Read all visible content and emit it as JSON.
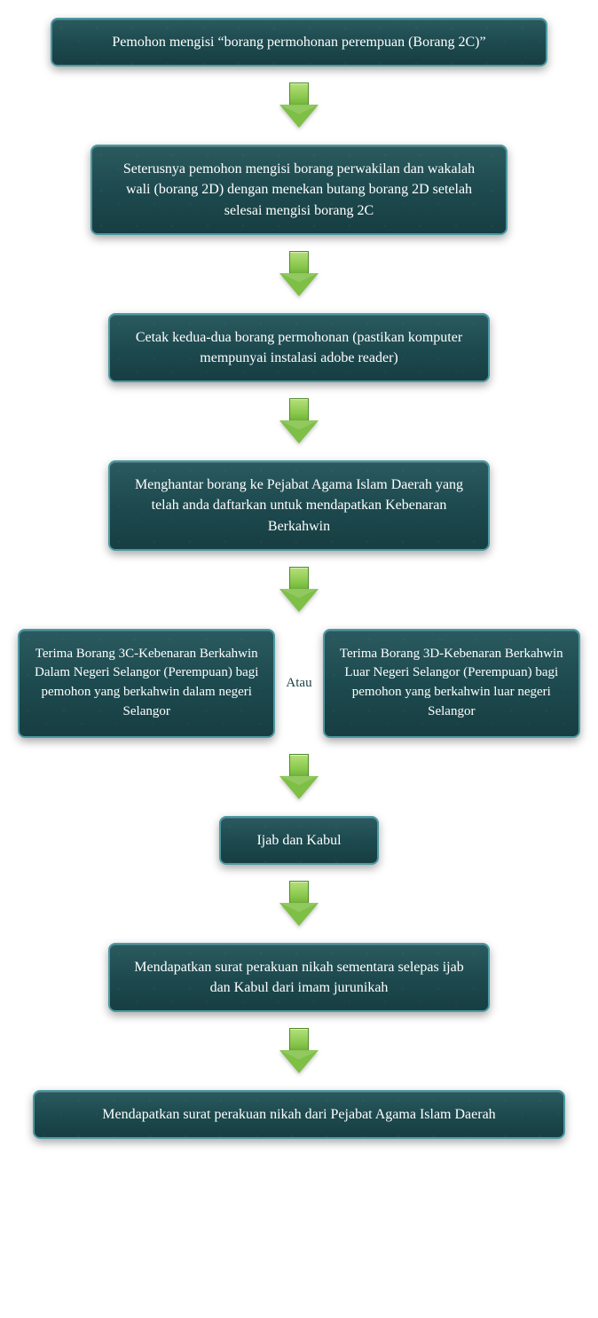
{
  "flowchart": {
    "type": "flowchart",
    "background_color": "#ffffff",
    "node_style": {
      "fill_gradient_top": "#2a5a5f",
      "fill_gradient_bottom": "#173e42",
      "border_color": "#4a9aa2",
      "border_radius": 8,
      "text_color": "#ffffff",
      "font_family": "Georgia, serif",
      "font_size": 16
    },
    "arrow_style": {
      "fill_top": "#b4e07a",
      "fill_bottom": "#6fb23a",
      "border_color": "#4e8a28",
      "width": 44,
      "height": 52
    },
    "or_label": "Atau",
    "or_label_color": "#1a3d40",
    "nodes": {
      "step1": "Pemohon mengisi “borang permohonan perempuan (Borang 2C)”",
      "step2": "Seterusnya pemohon mengisi borang perwakilan dan wakalah wali (borang 2D) dengan menekan butang borang 2D setelah selesai mengisi borang 2C",
      "step3": "Cetak kedua-dua borang permohonan (pastikan komputer mempunyai instalasi adobe reader)",
      "step4": "Menghantar borang ke Pejabat Agama Islam Daerah yang telah anda daftarkan untuk mendapatkan Kebenaran Berkahwin",
      "branch_left": "Terima Borang 3C-Kebenaran Berkahwin Dalam Negeri Selangor (Perempuan) bagi pemohon yang berkahwin dalam negeri Selangor",
      "branch_right": "Terima Borang 3D-Kebenaran Berkahwin Luar Negeri Selangor (Perempuan) bagi pemohon yang berkahwin luar negeri Selangor",
      "step6": "Ijab dan Kabul",
      "step7": "Mendapatkan surat perakuan nikah sementara selepas ijab dan Kabul dari imam jurunikah",
      "step8": "Mendapatkan surat perakuan nikah dari Pejabat Agama Islam Daerah"
    }
  }
}
